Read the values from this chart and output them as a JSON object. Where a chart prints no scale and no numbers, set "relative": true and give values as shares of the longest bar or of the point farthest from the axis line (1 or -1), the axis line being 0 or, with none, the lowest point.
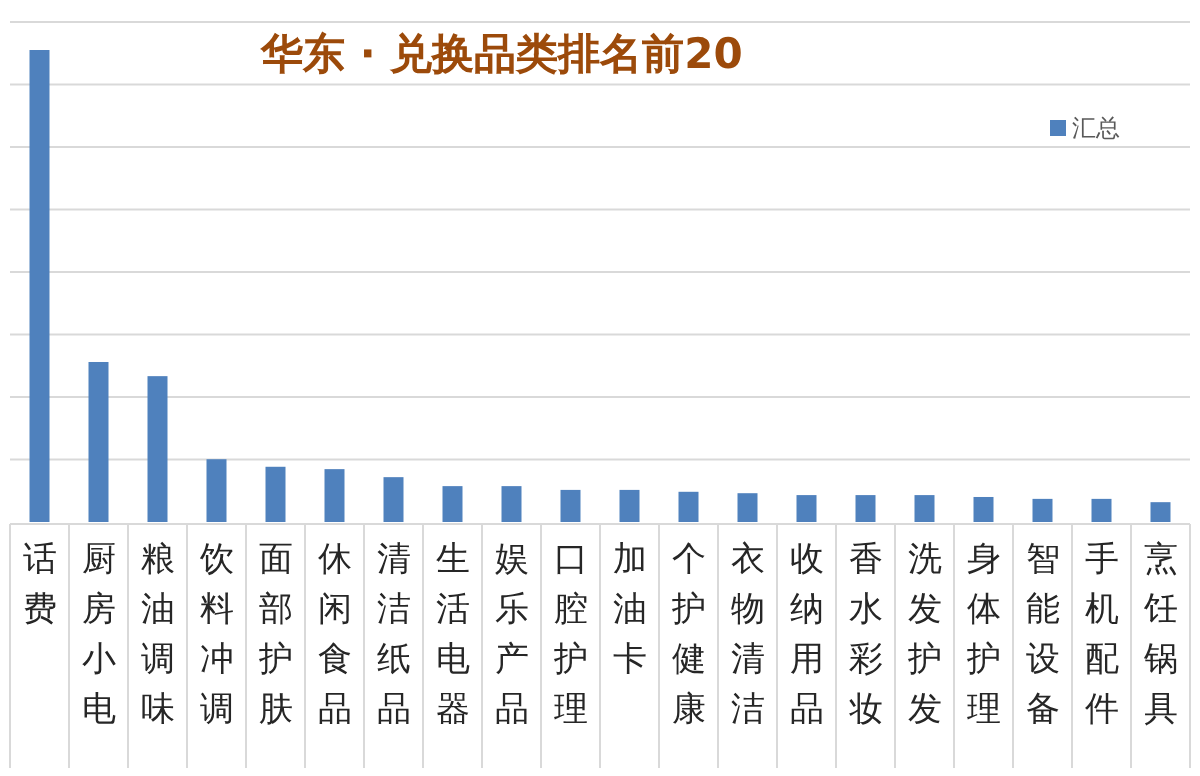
{
  "chart_data": {
    "type": "bar",
    "title": "华东 · 兑换品类排名前20",
    "relative": true,
    "grid": true,
    "legend": "top right",
    "categories": [
      "话费",
      "厨房小电",
      "粮油调味",
      "饮料冲调",
      "面部护肤",
      "休闲食品",
      "清洁纸品",
      "生活电器",
      "娱乐产品",
      "口腔护理",
      "加油卡",
      "个护健康",
      "衣物清洁",
      "收纳用品",
      "香水彩妆",
      "洗发护发",
      "身体护理",
      "智能设备",
      "手机配件",
      "烹饪锅具"
    ],
    "series": [
      {
        "name": "汇总",
        "color": "#4f81bd",
        "values": [
          1,
          0.339,
          0.309,
          0.133,
          0.117,
          0.112,
          0.095,
          0.076,
          0.076,
          0.068,
          0.068,
          0.064,
          0.061,
          0.057,
          0.057,
          0.057,
          0.053,
          0.049,
          0.049,
          0.042
        ]
      }
    ]
  }
}
